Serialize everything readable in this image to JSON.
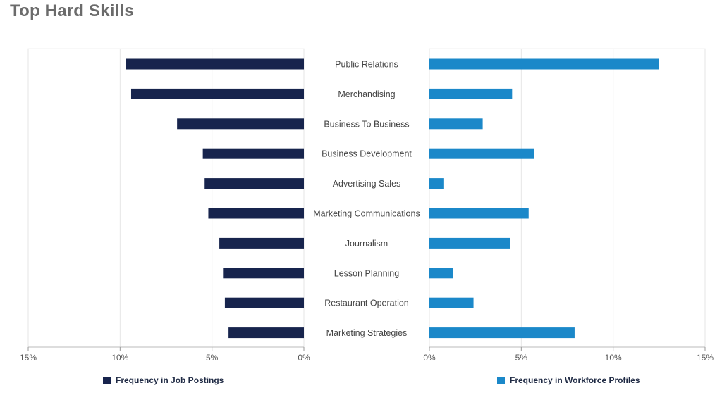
{
  "title": "Top Hard Skills",
  "colors": {
    "job_postings": "#17244d",
    "workforce_profiles": "#1b88c9",
    "axis_text": "#555555",
    "label_text": "#444444",
    "grid": "#e6e6e6"
  },
  "legend": {
    "job_postings": "Frequency in Job Postings",
    "workforce_profiles": "Frequency in Workforce Profiles"
  },
  "chart_data": {
    "type": "bar",
    "orientation": "horizontal",
    "title": "Top Hard Skills",
    "categories": [
      "Public Relations",
      "Merchandising",
      "Business To Business",
      "Business Development",
      "Advertising Sales",
      "Marketing Communications",
      "Journalism",
      "Lesson Planning",
      "Restaurant Operation",
      "Marketing Strategies"
    ],
    "series": [
      {
        "name": "Frequency in Job Postings",
        "values": [
          9.7,
          9.4,
          6.9,
          5.5,
          5.4,
          5.2,
          4.6,
          4.4,
          4.3,
          4.1
        ]
      },
      {
        "name": "Frequency in Workforce Profiles",
        "values": [
          12.5,
          4.5,
          2.9,
          5.7,
          0.8,
          5.4,
          4.4,
          1.3,
          2.4,
          7.9
        ]
      }
    ],
    "xlim": [
      0,
      15
    ],
    "ticks": [
      "15%",
      "10%",
      "5%",
      "0%"
    ],
    "ticks_right": [
      "0%",
      "5%",
      "10%",
      "15%"
    ],
    "legend_position": "bottom",
    "grid": true
  }
}
